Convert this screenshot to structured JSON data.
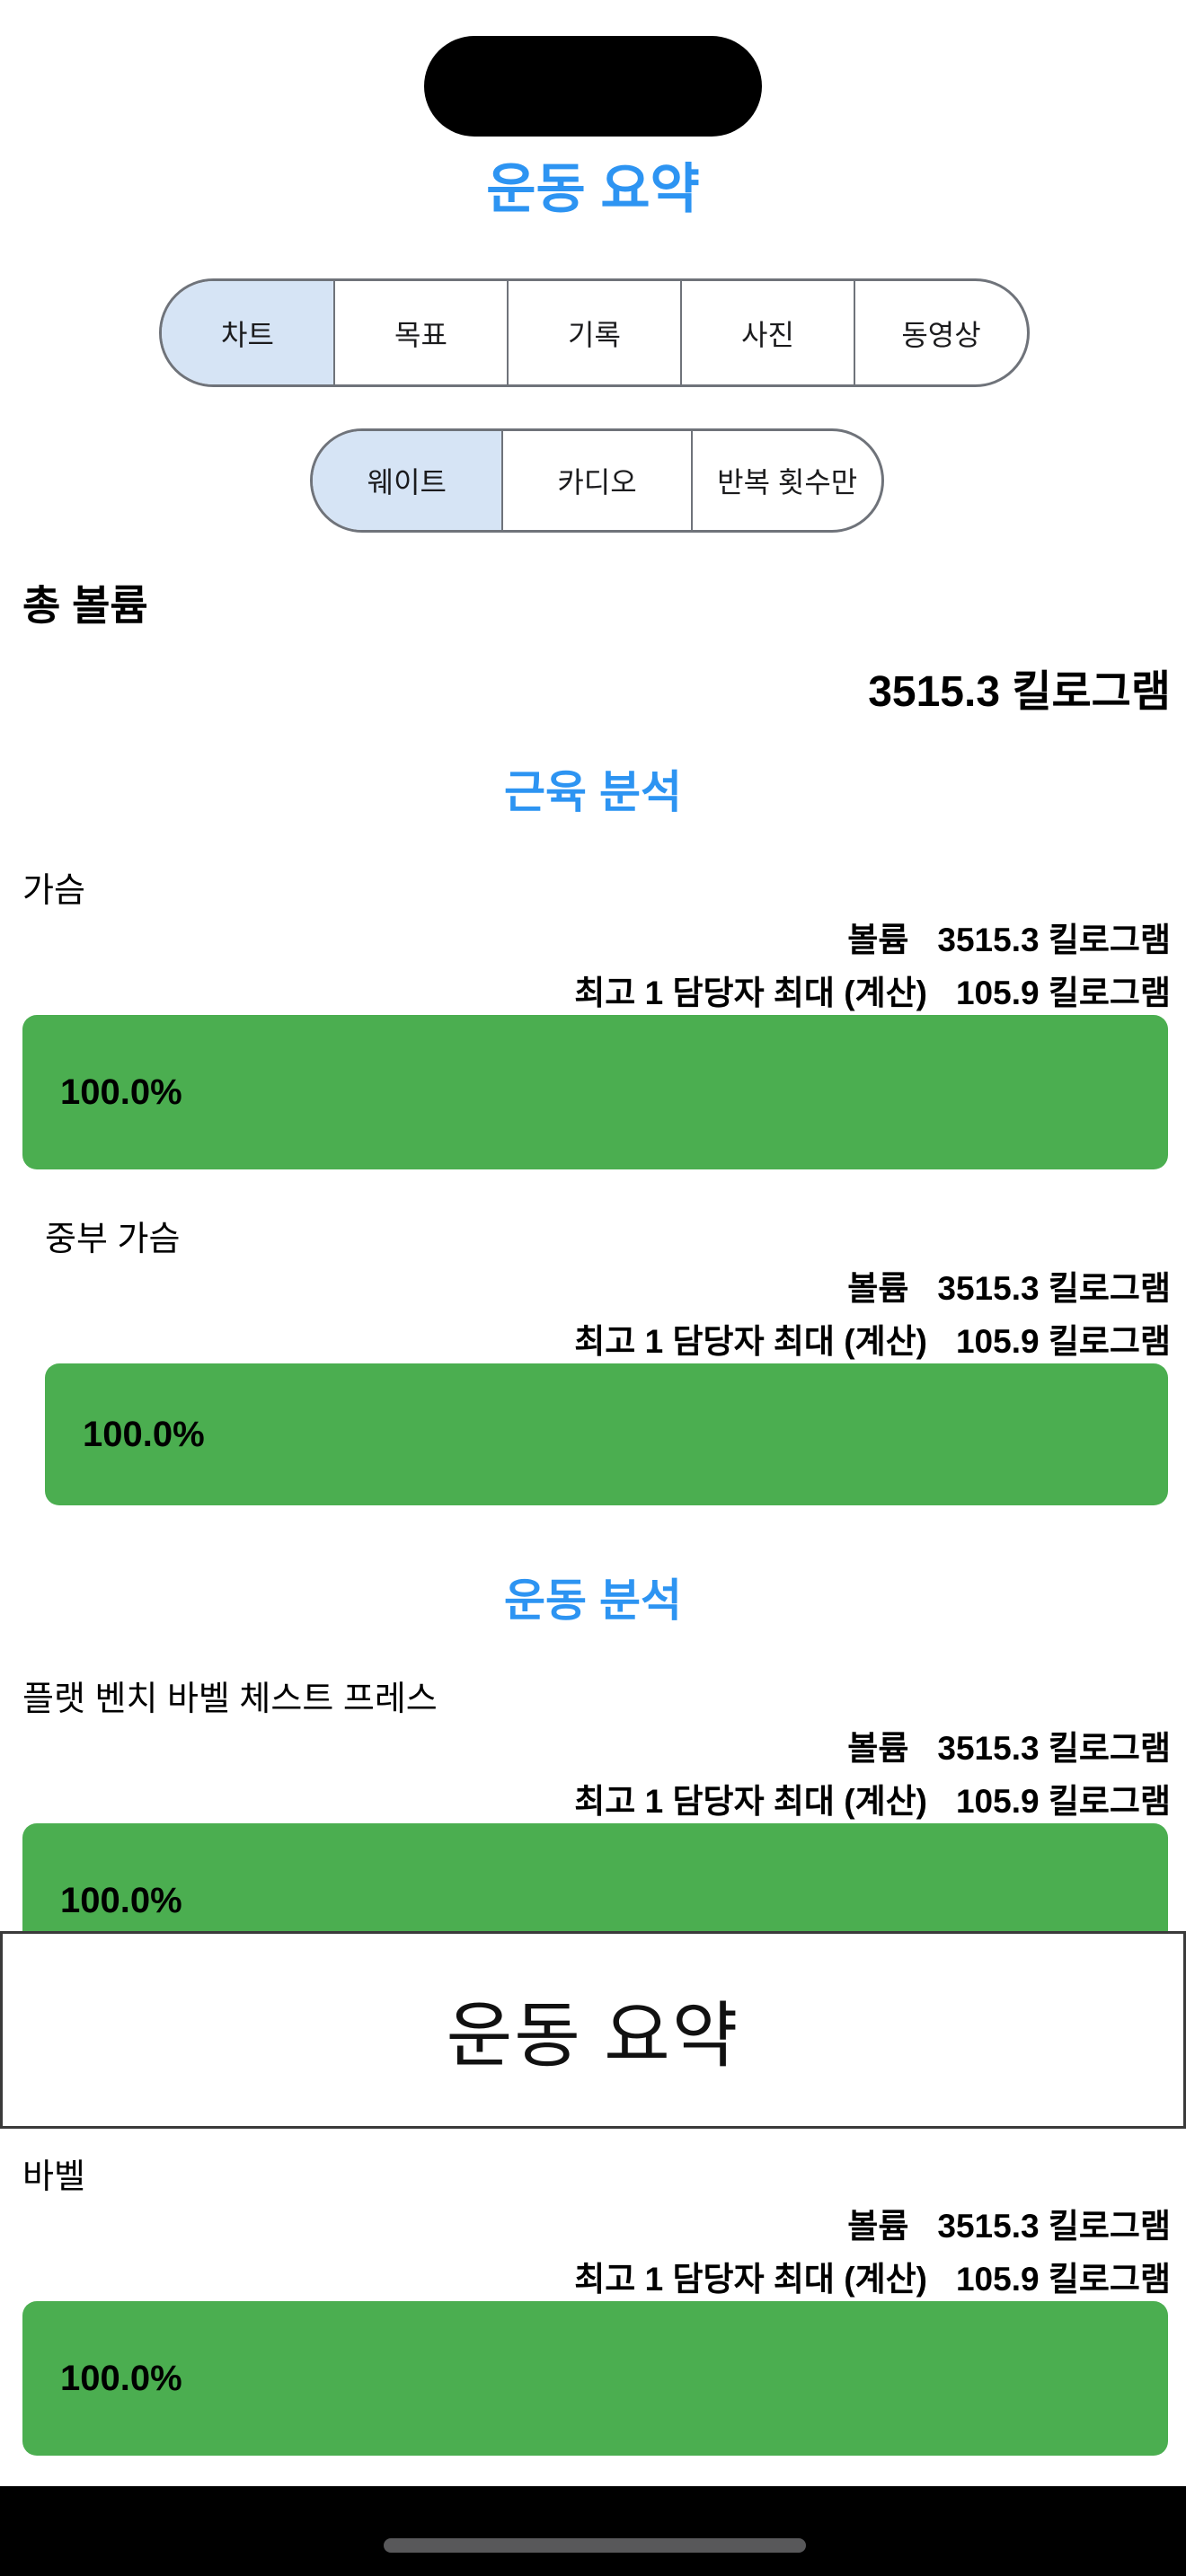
{
  "colors": {
    "accent_blue": "#2D94F2",
    "bar_green": "#4BAE50",
    "segment_selected_bg": "#D6E4F5",
    "segment_border": "#6F737A",
    "overlay_border": "#3A3A3A",
    "home_indicator": "#58585A"
  },
  "header": {
    "title": "운동 요약"
  },
  "tabs_primary": {
    "items": [
      {
        "label": "차트",
        "selected": true
      },
      {
        "label": "목표",
        "selected": false
      },
      {
        "label": "기록",
        "selected": false
      },
      {
        "label": "사진",
        "selected": false
      },
      {
        "label": "동영상",
        "selected": false
      }
    ]
  },
  "tabs_secondary": {
    "items": [
      {
        "label": "웨이트",
        "selected": true
      },
      {
        "label": "카디오",
        "selected": false
      },
      {
        "label": "반복 횟수만",
        "selected": false
      }
    ]
  },
  "total": {
    "label": "총 볼륨",
    "value": "3515.3 킬로그램"
  },
  "headings": {
    "muscle": "근육 분석",
    "exercise": "운동 분석"
  },
  "stat_labels": {
    "volume": "볼륨",
    "best": "최고 1 담당자 최대 (계산)"
  },
  "sections": [
    {
      "label": "가슴",
      "volume_value": "3515.3 킬로그램",
      "best_value": "105.9 킬로그램",
      "percent": "100.0%"
    },
    {
      "label": "중부 가슴",
      "volume_value": "3515.3 킬로그램",
      "best_value": "105.9 킬로그램",
      "percent": "100.0%"
    },
    {
      "label": "플랫 벤치 바벨 체스트 프레스",
      "volume_value": "3515.3 킬로그램",
      "best_value": "105.9 킬로그램",
      "percent": "100.0%"
    },
    {
      "label": "바벨",
      "volume_value": "3515.3 킬로그램",
      "best_value": "105.9 킬로그램",
      "percent": "100.0%"
    }
  ],
  "overlay": {
    "title": "운동 요약"
  }
}
